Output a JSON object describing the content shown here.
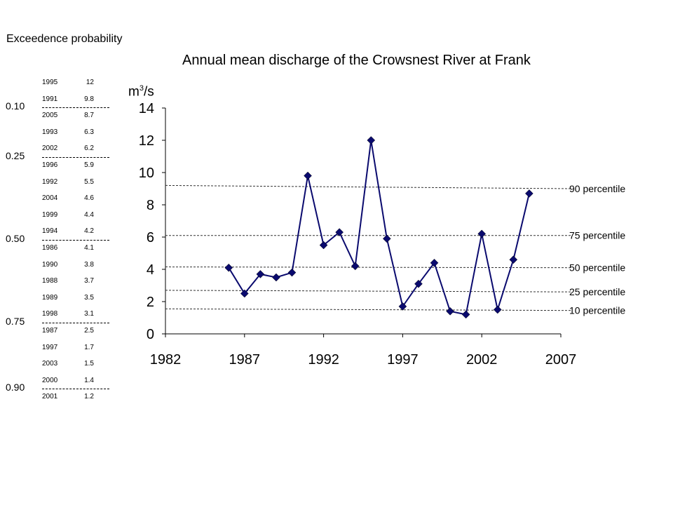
{
  "table": {
    "title": "Exceedence probability",
    "rows": [
      {
        "year": "1995",
        "value": "12"
      },
      {
        "year": "1991",
        "value": "9.8"
      },
      {
        "year": "2005",
        "value": "8.7"
      },
      {
        "year": "1993",
        "value": "6.3"
      },
      {
        "year": "2002",
        "value": "6.2"
      },
      {
        "year": "1996",
        "value": "5.9"
      },
      {
        "year": "1992",
        "value": "5.5"
      },
      {
        "year": "2004",
        "value": "4.6"
      },
      {
        "year": "1999",
        "value": "4.4"
      },
      {
        "year": "1994",
        "value": "4.2"
      },
      {
        "year": "1986",
        "value": "4.1"
      },
      {
        "year": "1990",
        "value": "3.8"
      },
      {
        "year": "1988",
        "value": "3.7"
      },
      {
        "year": "1989",
        "value": "3.5"
      },
      {
        "year": "1998",
        "value": "3.1"
      },
      {
        "year": "1987",
        "value": "2.5"
      },
      {
        "year": "1997",
        "value": "1.7"
      },
      {
        "year": "2003",
        "value": "1.5"
      },
      {
        "year": "2000",
        "value": "1.4"
      },
      {
        "year": "2001",
        "value": "1.2"
      }
    ],
    "probabilities": [
      {
        "label": "0.10",
        "after_row": 1
      },
      {
        "label": "0.25",
        "after_row": 4
      },
      {
        "label": "0.50",
        "after_row": 9
      },
      {
        "label": "0.75",
        "after_row": 14
      },
      {
        "label": "0.90",
        "after_row": 18
      }
    ]
  },
  "chart_data": {
    "type": "line",
    "title": "Annual mean discharge of the Crowsnest River at Frank",
    "ylabel_main": "m",
    "ylabel_sup": "3",
    "ylabel_tail": "/s",
    "xlim": [
      1982,
      2007
    ],
    "ylim": [
      0,
      14
    ],
    "xticks": [
      "1982",
      "1987",
      "1992",
      "1997",
      "2002",
      "2007"
    ],
    "yticks": [
      "0",
      "2",
      "4",
      "6",
      "8",
      "10",
      "12",
      "14"
    ],
    "series": [
      {
        "color": "#0a0a6e",
        "x": [
          1986,
          1987,
          1988,
          1989,
          1990,
          1991,
          1992,
          1993,
          1994,
          1995,
          1996,
          1997,
          1998,
          1999,
          2000,
          2001,
          2002,
          2003,
          2004,
          2005
        ],
        "y": [
          4.1,
          2.5,
          3.7,
          3.5,
          3.8,
          9.8,
          5.5,
          6.3,
          4.2,
          12,
          5.9,
          1.7,
          3.1,
          4.4,
          1.4,
          1.2,
          6.2,
          1.5,
          4.6,
          8.7
        ]
      }
    ],
    "percentiles": [
      {
        "label": "90 percentile",
        "y_start": 9.2,
        "y_end": 9.0
      },
      {
        "label": "75 percentile",
        "y_start": 6.1,
        "y_end": 6.1
      },
      {
        "label": "50 percentile",
        "y_start": 4.15,
        "y_end": 4.1
      },
      {
        "label": "25 percentile",
        "y_start": 2.7,
        "y_end": 2.6
      },
      {
        "label": "10 percentile",
        "y_start": 1.55,
        "y_end": 1.45
      }
    ]
  }
}
